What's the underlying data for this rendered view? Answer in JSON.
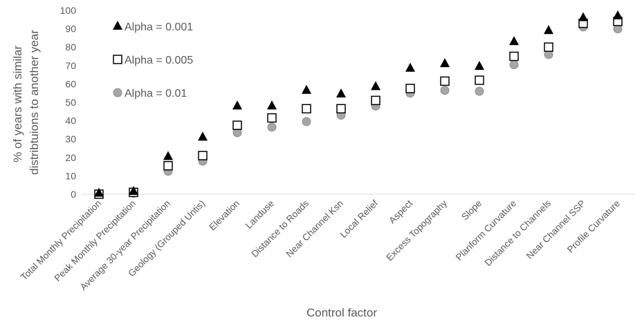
{
  "chart_data": {
    "type": "scatter",
    "categories": [
      "Total Monthly Precipitation",
      "Peak Monthly Precipitation",
      "Average 30-year Precipitation",
      "Geology (Grouped Untis)",
      "Elevation",
      "Landuse",
      "Distance to Roads",
      "Near Channel Ksn",
      "Local Relief",
      "Aspect",
      "Excess Topography",
      "Slope",
      "Planform Curvature",
      "Distance to Channels",
      "Near Channel SSP",
      "Profile Curvature"
    ],
    "series": [
      {
        "name": "Alpha = 0.001",
        "marker": "triangle",
        "color": "#000000",
        "values": [
          0.5,
          1.5,
          20.5,
          31,
          48,
          48,
          56.5,
          54.5,
          58.5,
          68.5,
          71,
          69.5,
          83,
          89,
          96,
          97
        ]
      },
      {
        "name": "Alpha = 0.005",
        "marker": "square",
        "color": "#000000",
        "values": [
          0,
          1,
          15.5,
          21,
          37.5,
          41.5,
          46.5,
          46.5,
          51,
          57.5,
          61.5,
          62,
          75,
          80,
          93,
          94
        ]
      },
      {
        "name": "Alpha = 0.01",
        "marker": "circle",
        "color": "#a6a6a6",
        "values": [
          0,
          0.5,
          12.5,
          18,
          33.5,
          36.5,
          39.5,
          43,
          48,
          55,
          56.5,
          56,
          70.5,
          76,
          91,
          90
        ]
      }
    ],
    "xlabel": "Control factor",
    "ylabel": [
      "% of years with similar",
      "distribtuions to another year"
    ],
    "ylim": [
      0,
      100
    ],
    "yticks": [
      0,
      10,
      20,
      30,
      40,
      50,
      60,
      70,
      80,
      90,
      100
    ],
    "grid": false,
    "legend_position": "top-left"
  }
}
